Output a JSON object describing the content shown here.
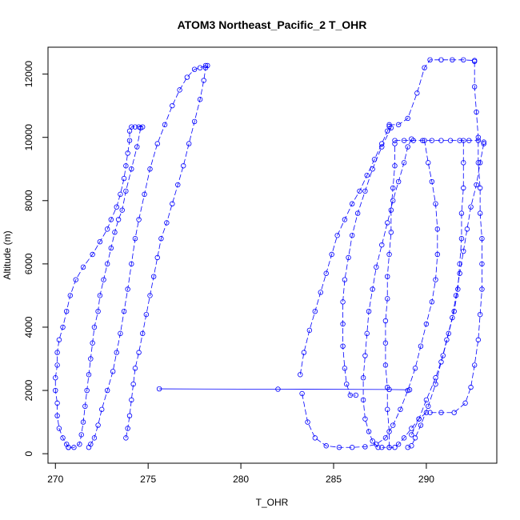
{
  "chart_data": {
    "type": "scatter",
    "title": "ATOM3 Northeast_Pacific_2 T_OHR",
    "xlabel": "T_OHR",
    "ylabel": "Altitude (m)",
    "xlim": [
      269.6,
      293.8
    ],
    "ylim": [
      -300,
      12850
    ],
    "xticks": [
      270,
      275,
      280,
      285,
      290
    ],
    "yticks": [
      0,
      2000,
      4000,
      6000,
      8000,
      10000,
      12000
    ],
    "grid": false,
    "legend": "none",
    "color": "#0000ff",
    "series": [
      {
        "style": "dashed",
        "points": [
          [
            270.7,
            200
          ],
          [
            270.6,
            300
          ],
          [
            270.4,
            500
          ],
          [
            270.2,
            800
          ],
          [
            270.1,
            1200
          ],
          [
            270.1,
            1600
          ],
          [
            270.0,
            2000
          ],
          [
            270.0,
            2400
          ],
          [
            270.1,
            2800
          ],
          [
            270.1,
            3200
          ],
          [
            270.2,
            3600
          ],
          [
            270.4,
            4000
          ],
          [
            270.6,
            4500
          ],
          [
            270.8,
            5000
          ],
          [
            271.1,
            5500
          ],
          [
            271.5,
            5900
          ],
          [
            272.0,
            6300
          ],
          [
            272.4,
            6700
          ],
          [
            272.8,
            7100
          ],
          [
            273.0,
            7400
          ],
          [
            273.3,
            7800
          ],
          [
            273.5,
            8200
          ],
          [
            273.7,
            8700
          ],
          [
            273.8,
            9100
          ],
          [
            273.9,
            9500
          ],
          [
            274.0,
            9900
          ],
          [
            274.0,
            10200
          ],
          [
            274.1,
            10330
          ],
          [
            274.3,
            10330
          ],
          [
            274.5,
            10330
          ],
          [
            274.7,
            10330
          ]
        ]
      },
      {
        "style": "dashed",
        "points": [
          [
            274.6,
            10300
          ],
          [
            274.4,
            9700
          ],
          [
            274.1,
            9000
          ],
          [
            273.8,
            8300
          ],
          [
            273.6,
            7700
          ],
          [
            273.4,
            7400
          ],
          [
            273.2,
            7000
          ],
          [
            273.0,
            6500
          ],
          [
            272.8,
            6000
          ],
          [
            272.6,
            5500
          ],
          [
            272.4,
            5000
          ],
          [
            272.3,
            4500
          ],
          [
            272.1,
            4000
          ],
          [
            272.0,
            3500
          ],
          [
            271.9,
            3000
          ],
          [
            271.8,
            2500
          ],
          [
            271.7,
            2000
          ],
          [
            271.6,
            1500
          ],
          [
            271.5,
            1000
          ],
          [
            271.4,
            600
          ],
          [
            271.3,
            300
          ],
          [
            271.0,
            200
          ],
          [
            270.7,
            200
          ]
        ]
      },
      {
        "style": "dashed",
        "points": [
          [
            273.8,
            500
          ],
          [
            273.9,
            800
          ],
          [
            274.0,
            1200
          ],
          [
            274.1,
            1700
          ],
          [
            274.2,
            2200
          ],
          [
            274.3,
            2700
          ],
          [
            274.5,
            3200
          ],
          [
            274.7,
            3800
          ],
          [
            274.9,
            4400
          ],
          [
            275.1,
            5000
          ],
          [
            275.3,
            5600
          ],
          [
            275.5,
            6200
          ],
          [
            275.7,
            6800
          ],
          [
            276.0,
            7300
          ],
          [
            276.3,
            7900
          ],
          [
            276.6,
            8500
          ],
          [
            276.9,
            9100
          ],
          [
            277.2,
            9800
          ],
          [
            277.5,
            10500
          ],
          [
            277.8,
            11200
          ],
          [
            278.0,
            11800
          ],
          [
            278.1,
            12200
          ],
          [
            278.2,
            12270
          ]
        ]
      },
      {
        "style": "dashed",
        "points": [
          [
            278.1,
            12270
          ],
          [
            277.8,
            12200
          ],
          [
            277.5,
            12150
          ],
          [
            277.1,
            11900
          ],
          [
            276.7,
            11500
          ],
          [
            276.3,
            11000
          ],
          [
            275.9,
            10400
          ],
          [
            275.5,
            9800
          ],
          [
            275.1,
            9000
          ],
          [
            274.8,
            8200
          ],
          [
            274.5,
            7400
          ],
          [
            274.3,
            6800
          ],
          [
            274.1,
            6000
          ],
          [
            273.9,
            5200
          ],
          [
            273.7,
            4500
          ],
          [
            273.5,
            3800
          ],
          [
            273.3,
            3200
          ],
          [
            273.1,
            2600
          ],
          [
            272.8,
            2000
          ],
          [
            272.5,
            1400
          ],
          [
            272.3,
            900
          ],
          [
            272.1,
            500
          ],
          [
            271.9,
            300
          ],
          [
            271.8,
            200
          ]
        ]
      },
      {
        "style": "solid",
        "points": [
          [
            275.6,
            2050
          ],
          [
            282.0,
            2040
          ],
          [
            288.0,
            2030
          ],
          [
            289.1,
            2020
          ]
        ]
      },
      {
        "style": "dashed",
        "points": [
          [
            283.2,
            2500
          ],
          [
            283.4,
            3200
          ],
          [
            283.7,
            3900
          ],
          [
            284.0,
            4500
          ],
          [
            284.3,
            5100
          ],
          [
            284.6,
            5700
          ],
          [
            284.9,
            6300
          ],
          [
            285.2,
            6900
          ],
          [
            285.6,
            7400
          ],
          [
            286.0,
            7900
          ],
          [
            286.4,
            8300
          ],
          [
            286.8,
            8800
          ],
          [
            287.2,
            9300
          ],
          [
            287.6,
            9800
          ],
          [
            287.9,
            10200
          ],
          [
            288.0,
            10350
          ]
        ]
      },
      {
        "style": "dashed",
        "points": [
          [
            288.1,
            10300
          ],
          [
            287.6,
            9700
          ],
          [
            287.1,
            9000
          ],
          [
            286.7,
            8300
          ],
          [
            286.3,
            7600
          ],
          [
            286.0,
            6900
          ],
          [
            285.8,
            6200
          ],
          [
            285.6,
            5500
          ],
          [
            285.5,
            4800
          ],
          [
            285.5,
            4100
          ],
          [
            285.5,
            3400
          ],
          [
            285.6,
            2700
          ],
          [
            285.7,
            2200
          ],
          [
            285.9,
            1850
          ],
          [
            286.2,
            1850
          ]
        ]
      },
      {
        "style": "dashed",
        "points": [
          [
            283.3,
            1900
          ],
          [
            283.6,
            1000
          ],
          [
            284.0,
            500
          ],
          [
            284.6,
            250
          ],
          [
            285.3,
            200
          ],
          [
            286.0,
            200
          ],
          [
            286.7,
            220
          ],
          [
            287.3,
            300
          ],
          [
            287.8,
            500
          ],
          [
            288.2,
            900
          ],
          [
            288.6,
            1400
          ],
          [
            289.0,
            2000
          ],
          [
            289.4,
            2700
          ],
          [
            289.7,
            3400
          ],
          [
            290.0,
            4100
          ],
          [
            290.3,
            4800
          ],
          [
            290.5,
            5500
          ],
          [
            290.6,
            6300
          ],
          [
            290.6,
            7100
          ],
          [
            290.5,
            7900
          ],
          [
            290.3,
            8600
          ],
          [
            290.1,
            9200
          ],
          [
            289.9,
            9900
          ]
        ]
      },
      {
        "style": "dashed",
        "points": [
          [
            289.2,
            9950
          ],
          [
            289.0,
            9700
          ],
          [
            288.8,
            9200
          ],
          [
            288.5,
            8600
          ],
          [
            288.2,
            8000
          ],
          [
            287.9,
            7300
          ],
          [
            287.6,
            6600
          ],
          [
            287.3,
            5900
          ],
          [
            287.1,
            5200
          ],
          [
            286.9,
            4500
          ],
          [
            286.8,
            3800
          ],
          [
            286.7,
            3100
          ],
          [
            286.6,
            2400
          ],
          [
            286.6,
            1700
          ],
          [
            286.7,
            1100
          ],
          [
            286.9,
            700
          ],
          [
            287.1,
            400
          ],
          [
            287.4,
            200
          ]
        ]
      },
      {
        "style": "dashed",
        "points": [
          [
            288.0,
            200
          ],
          [
            288.0,
            700
          ],
          [
            287.9,
            1400
          ],
          [
            287.9,
            2100
          ],
          [
            287.8,
            2800
          ],
          [
            287.8,
            3500
          ],
          [
            287.8,
            4200
          ],
          [
            287.9,
            4900
          ],
          [
            287.9,
            5600
          ],
          [
            288.0,
            6300
          ],
          [
            288.1,
            7000
          ],
          [
            288.1,
            7700
          ],
          [
            288.2,
            8400
          ],
          [
            288.3,
            9100
          ],
          [
            288.3,
            9800
          ]
        ]
      },
      {
        "style": "dashed",
        "points": [
          [
            288.3,
            9900
          ],
          [
            288.8,
            9900
          ],
          [
            289.3,
            9900
          ],
          [
            289.8,
            9900
          ],
          [
            290.3,
            9900
          ],
          [
            290.8,
            9900
          ],
          [
            291.3,
            9900
          ],
          [
            291.8,
            9900
          ],
          [
            292.3,
            9900
          ],
          [
            292.8,
            9900
          ],
          [
            293.1,
            9850
          ]
        ]
      },
      {
        "style": "dashed",
        "points": [
          [
            293.1,
            9800
          ],
          [
            292.9,
            9200
          ],
          [
            292.7,
            8500
          ],
          [
            292.4,
            7800
          ],
          [
            292.2,
            7100
          ],
          [
            292.0,
            6400
          ],
          [
            291.8,
            5700
          ],
          [
            291.6,
            5000
          ],
          [
            291.4,
            4300
          ],
          [
            291.1,
            3600
          ],
          [
            290.8,
            2900
          ],
          [
            290.5,
            2200
          ],
          [
            290.1,
            1500
          ],
          [
            289.7,
            900
          ],
          [
            289.4,
            500
          ],
          [
            289.2,
            250
          ],
          [
            289.0,
            200
          ]
        ]
      },
      {
        "style": "dashed",
        "points": [
          [
            289.2,
            600
          ],
          [
            289.6,
            1100
          ],
          [
            290.0,
            1700
          ],
          [
            290.5,
            2400
          ],
          [
            290.9,
            3100
          ],
          [
            291.2,
            3800
          ],
          [
            291.5,
            4500
          ],
          [
            291.7,
            5200
          ],
          [
            291.8,
            6000
          ],
          [
            291.9,
            6800
          ],
          [
            291.9,
            7600
          ],
          [
            292.0,
            8400
          ],
          [
            292.0,
            9200
          ],
          [
            292.0,
            9900
          ]
        ]
      },
      {
        "style": "dashed",
        "points": [
          [
            288.0,
            10400
          ],
          [
            288.5,
            10400
          ],
          [
            289.0,
            10600
          ],
          [
            289.5,
            11400
          ],
          [
            289.9,
            12200
          ],
          [
            290.2,
            12450
          ],
          [
            290.8,
            12450
          ],
          [
            291.4,
            12450
          ],
          [
            292.0,
            12450
          ],
          [
            292.6,
            12430
          ]
        ]
      },
      {
        "style": "dashed",
        "points": [
          [
            292.6,
            12400
          ],
          [
            292.6,
            11600
          ],
          [
            292.7,
            10800
          ],
          [
            292.8,
            10000
          ],
          [
            292.8,
            9200
          ],
          [
            292.9,
            8400
          ],
          [
            292.9,
            7600
          ],
          [
            293.0,
            6800
          ],
          [
            293.0,
            6000
          ],
          [
            293.0,
            5200
          ],
          [
            292.9,
            4400
          ],
          [
            292.8,
            3600
          ],
          [
            292.6,
            2800
          ],
          [
            292.4,
            2100
          ],
          [
            292.1,
            1600
          ],
          [
            291.5,
            1300
          ],
          [
            290.8,
            1300
          ],
          [
            290.2,
            1300
          ]
        ]
      },
      {
        "style": "dashed",
        "points": [
          [
            290.0,
            1300
          ],
          [
            289.6,
            1100
          ],
          [
            289.2,
            800
          ],
          [
            288.8,
            500
          ],
          [
            288.5,
            300
          ],
          [
            288.3,
            200
          ],
          [
            288.0,
            200
          ],
          [
            287.6,
            200
          ]
        ]
      }
    ]
  }
}
